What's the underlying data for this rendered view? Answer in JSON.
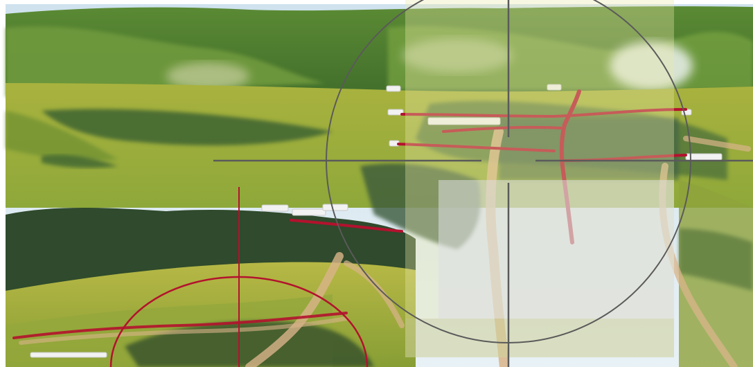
{
  "scene": {
    "description_colors": {
      "sky": "#d7e6ef",
      "hill_dark": "#3f6b2c",
      "hill_light": "#8eaa3d",
      "meadow": "#b7b441",
      "forest": "#2f4a2c",
      "road": "#c9a27a",
      "route_red": "#b3122e",
      "reticle_gray": "#5a5a5a"
    },
    "icons": [
      "crosshair-reticle-large-icon",
      "crosshair-reticle-small-icon"
    ]
  }
}
